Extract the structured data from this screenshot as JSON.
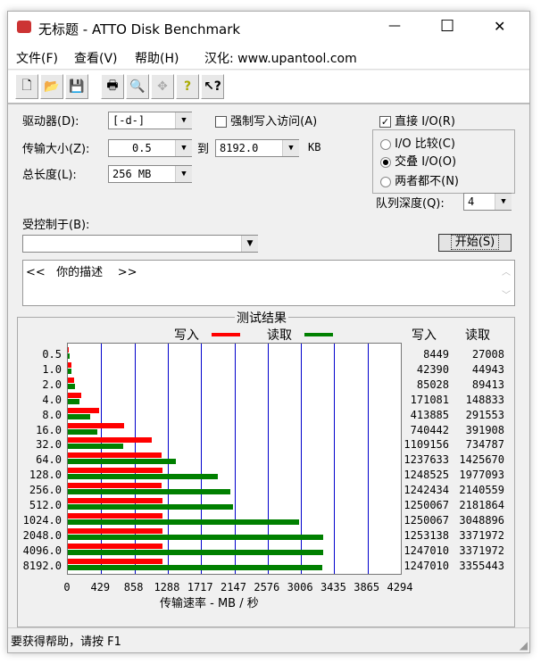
{
  "window": {
    "title": "无标题 - ATTO Disk Benchmark",
    "minimize": "—",
    "maximize": "☐",
    "close": "✕"
  },
  "menu": {
    "items": [
      "文件(F)",
      "查看(V)",
      "帮助(H)"
    ],
    "credit": "汉化: www.upantool.com"
  },
  "toolbar": {
    "icons": [
      "new-icon",
      "open-icon",
      "save-icon",
      "print-icon",
      "print-preview-icon",
      "move-icon",
      "help-icon",
      "context-help-icon"
    ]
  },
  "form": {
    "drive_label": "驱动器(D):",
    "drive_value": "[-d-]",
    "force_write_label": "强制写入访问(A)",
    "force_write_checked": false,
    "direct_io_label": "直接 I/O(R)",
    "direct_io_checked": true,
    "transfer_label": "传输大小(Z):",
    "transfer_from": "0.5",
    "to_label": "到",
    "transfer_to": "8192.0",
    "unit": "KB",
    "length_label": "总长度(L):",
    "length_value": "256 MB",
    "io_options": [
      {
        "label": "I/O 比较(C)",
        "selected": false
      },
      {
        "label": "交叠 I/O(O)",
        "selected": true
      },
      {
        "label": "两者都不(N)",
        "selected": false
      }
    ],
    "queue_label": "队列深度(Q):",
    "queue_value": "4",
    "controlled_label": "受控制于(B):",
    "controlled_value": "",
    "start_button": "开始(S)",
    "description": "<<   你的描述    >>"
  },
  "results": {
    "title": "测试结果",
    "legend_write": "写入",
    "legend_read": "读取",
    "col_write": "写入",
    "col_read": "读取",
    "colors": {
      "write": "#ff0000",
      "read": "#008000",
      "grid": "#0000cc"
    }
  },
  "chart_data": {
    "type": "bar",
    "orientation": "horizontal",
    "categories": [
      "0.5",
      "1.0",
      "2.0",
      "4.0",
      "8.0",
      "16.0",
      "32.0",
      "64.0",
      "128.0",
      "256.0",
      "512.0",
      "1024.0",
      "2048.0",
      "4096.0",
      "8192.0"
    ],
    "series": [
      {
        "name": "写入",
        "values": [
          8449,
          42390,
          85028,
          171081,
          413885,
          740442,
          1109156,
          1237633,
          1248525,
          1242434,
          1250067,
          1250067,
          1253138,
          1247010,
          1247010
        ]
      },
      {
        "name": "读取",
        "values": [
          27008,
          44943,
          89413,
          148833,
          291553,
          391908,
          734787,
          1425670,
          1977093,
          2140559,
          2181864,
          3048896,
          3371972,
          3371972,
          3355443
        ]
      }
    ],
    "xticks": [
      "0",
      "429",
      "858",
      "1288",
      "1717",
      "2147",
      "2576",
      "3006",
      "3435",
      "3865",
      "4294"
    ],
    "xlabel": "传输速率 - MB / 秒",
    "xlim": [
      0,
      4294
    ],
    "grid": true,
    "legend": "top"
  },
  "status": {
    "text": "要获得帮助，请按 F1"
  }
}
